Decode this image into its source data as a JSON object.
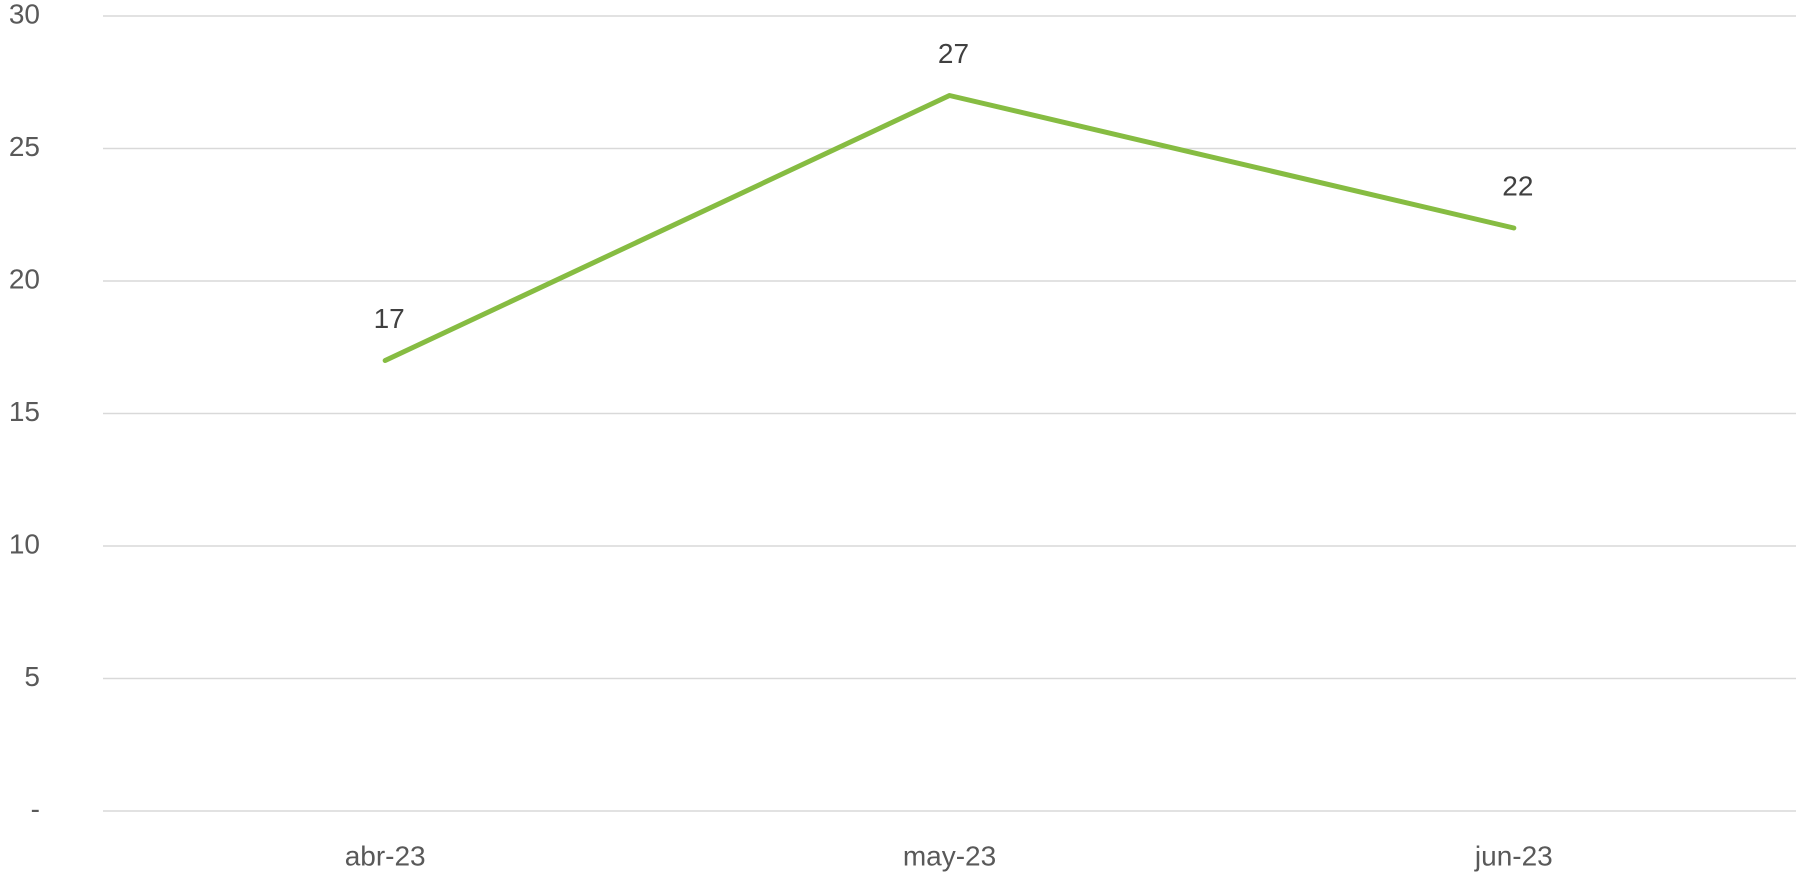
{
  "chart_data": {
    "type": "line",
    "categories": [
      "abr-23",
      "may-23",
      "jun-23"
    ],
    "values": [
      17,
      27,
      22
    ],
    "color": "#86bc42",
    "ylim": [
      0,
      30
    ],
    "yticks": [
      {
        "value": 0,
        "label": "-"
      },
      5,
      10,
      15,
      20,
      25,
      30
    ],
    "grid": true,
    "data_labels": true
  }
}
